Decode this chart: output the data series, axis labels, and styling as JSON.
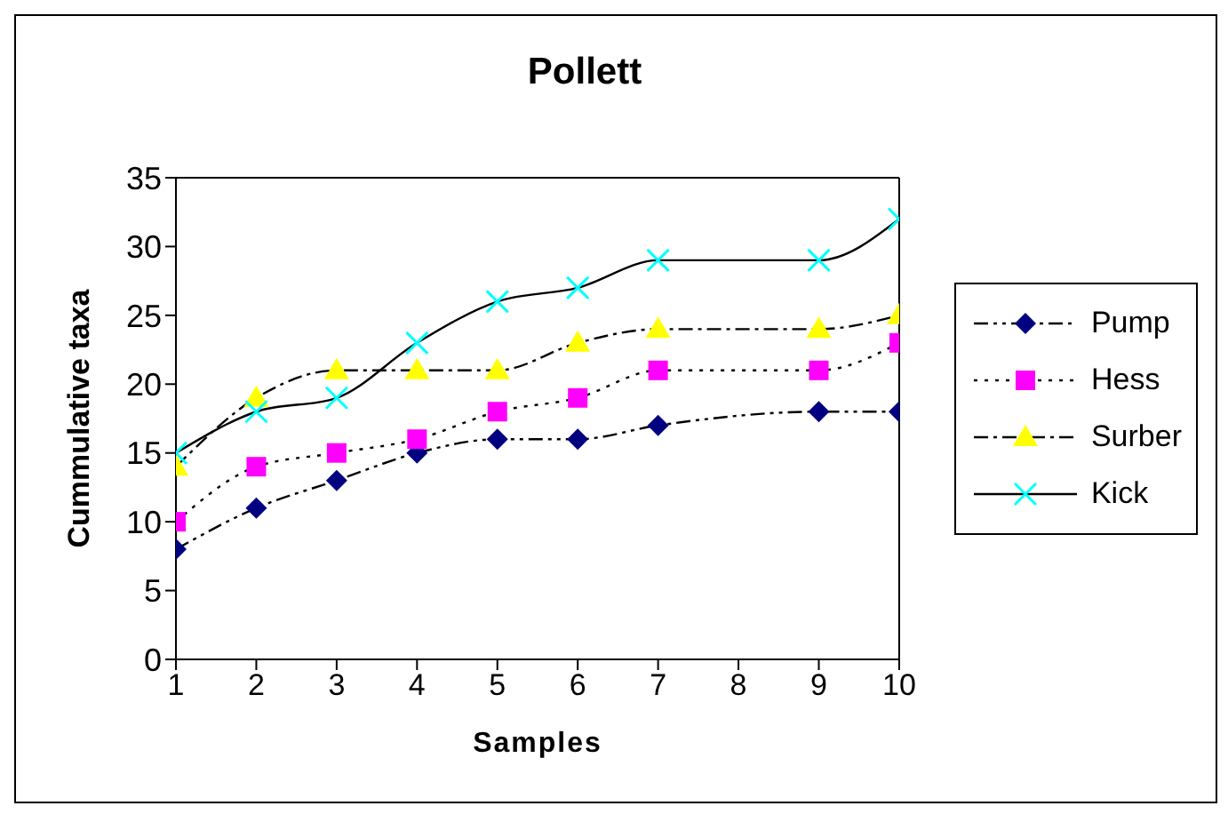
{
  "chart_data": {
    "type": "line",
    "title": "Pollett",
    "xlabel": "Samples",
    "ylabel": "Cummulative taxa",
    "x": [
      1,
      2,
      3,
      4,
      5,
      6,
      7,
      9,
      10
    ],
    "series": [
      {
        "name": "Pump",
        "color": "#000080",
        "marker": "diamond",
        "line_style": "dashdotdot",
        "values": [
          8,
          11,
          13,
          15,
          16,
          16,
          17,
          18,
          18
        ]
      },
      {
        "name": "Hess",
        "color": "#ff00ff",
        "marker": "square",
        "line_style": "dotted",
        "values": [
          10,
          14,
          15,
          16,
          18,
          19,
          21,
          21,
          23
        ]
      },
      {
        "name": "Surber",
        "color": "#ffff00",
        "marker": "triangle",
        "line_style": "dashdot",
        "values": [
          14,
          19,
          21,
          21,
          21,
          23,
          24,
          24,
          25
        ]
      },
      {
        "name": "Kick",
        "color": "#00ffff",
        "marker": "cross",
        "line_style": "solid",
        "values": [
          15,
          18,
          19,
          23,
          26,
          27,
          29,
          29,
          32
        ]
      }
    ],
    "xlim": [
      1,
      10
    ],
    "xticks": [
      1,
      2,
      3,
      4,
      5,
      6,
      7,
      8,
      9,
      10
    ],
    "ylim": [
      0,
      35
    ],
    "yticks": [
      0,
      5,
      10,
      15,
      20,
      25,
      30,
      35
    ],
    "grid": false,
    "legend": "right"
  }
}
